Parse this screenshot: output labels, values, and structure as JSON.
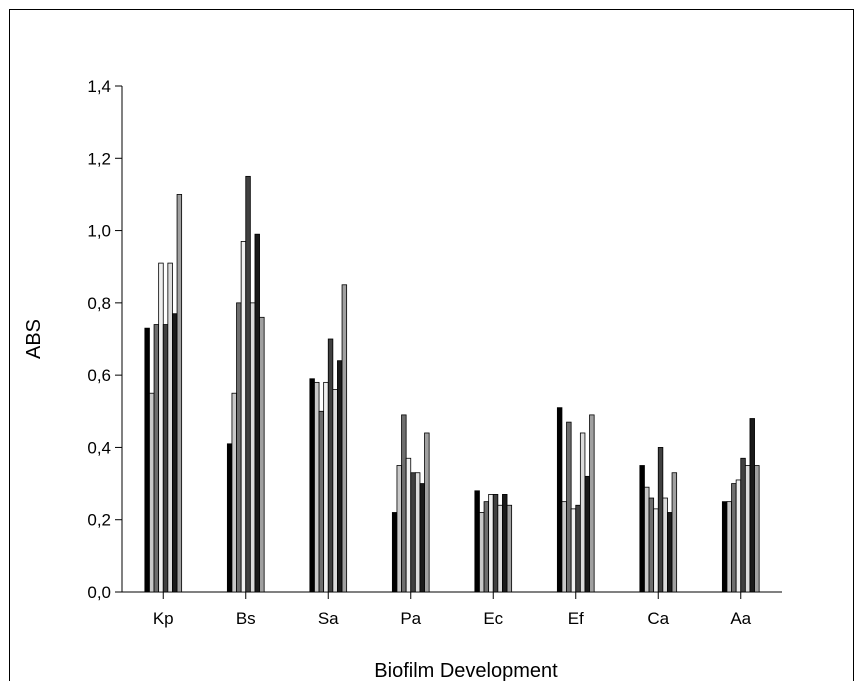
{
  "chart_data": {
    "type": "bar",
    "title": "",
    "xlabel": "Biofilm Development",
    "ylabel": "ABS",
    "ylim": [
      0,
      1.4
    ],
    "yticks": [
      "0,0",
      "0,2",
      "0,4",
      "0,6",
      "0,8",
      "1,0",
      "1,2",
      "1,4"
    ],
    "grid": false,
    "legend": "none",
    "categories": [
      "Kp",
      "Bs",
      "Sa",
      "Pa",
      "Ec",
      "Ef",
      "Ca",
      "Aa"
    ],
    "bar_fills": [
      "#000000",
      "#c8c8c8",
      "#6e6e6e",
      "#f0f0f0",
      "#404040",
      "#dcdcdc",
      "#1a1a1a",
      "#a0a0a0"
    ],
    "bars_per_category": [
      [
        0.73,
        0.55,
        0.74,
        0.91,
        0.74,
        0.91,
        0.77,
        1.1
      ],
      [
        0.41,
        0.55,
        0.8,
        0.97,
        1.15,
        0.8,
        0.99,
        0.76
      ],
      [
        0.59,
        0.58,
        0.5,
        0.58,
        0.7,
        0.56,
        0.64,
        0.85
      ],
      [
        0.22,
        0.35,
        0.49,
        0.37,
        0.33,
        0.33,
        0.3,
        0.44
      ],
      [
        0.28,
        0.22,
        0.25,
        0.27,
        0.27,
        0.24,
        0.27,
        0.24
      ],
      [
        0.51,
        0.25,
        0.47,
        0.23,
        0.24,
        0.44,
        0.32,
        0.49
      ],
      [
        0.35,
        0.29,
        0.26,
        0.23,
        0.4,
        0.26,
        0.22,
        0.33
      ],
      [
        0.25,
        0.25,
        0.3,
        0.31,
        0.37,
        0.35,
        0.48,
        0.35
      ]
    ]
  }
}
